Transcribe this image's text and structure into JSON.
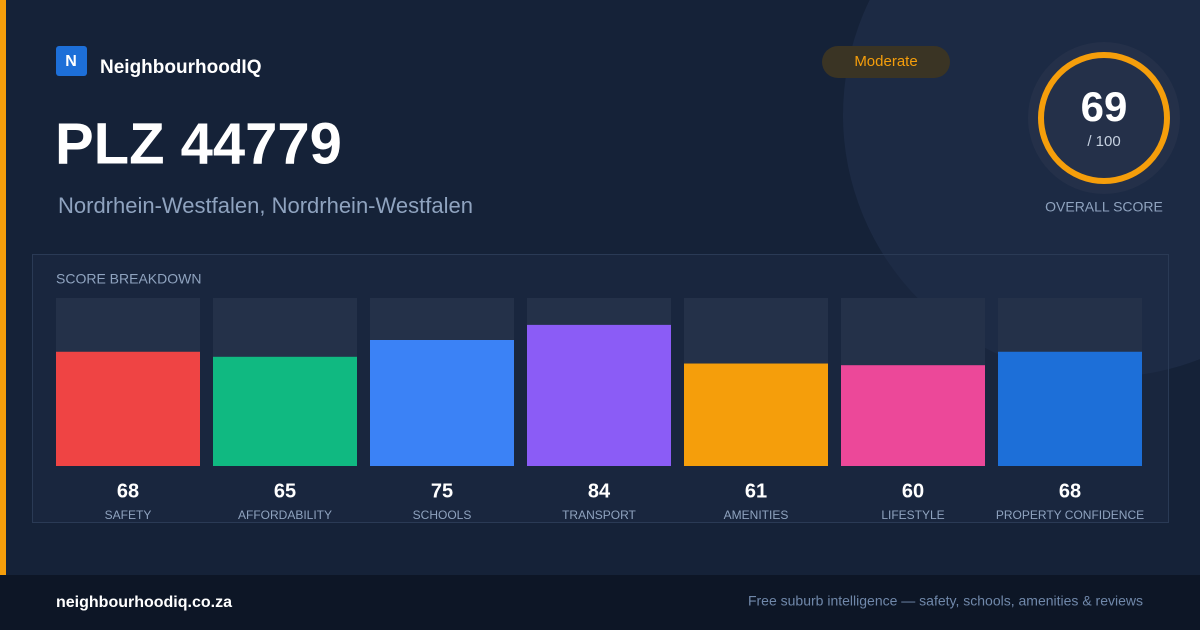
{
  "brand": {
    "logo": "N",
    "name": "NeighbourhoodIQ"
  },
  "title": "PLZ 44779",
  "subtitle": "Nordrhein-Westfalen, Nordrhein-Westfalen",
  "badge": "Moderate",
  "overall": {
    "score": 69,
    "max": {
      "value": 100,
      "label": "/ 100"
    },
    "caption": "OVERALL SCORE"
  },
  "chart_data": {
    "type": "bar",
    "title": "SCORE BREAKDOWN",
    "categories": [
      "SAFETY",
      "AFFORDABILITY",
      "SCHOOLS",
      "TRANSPORT",
      "AMENITIES",
      "LIFESTYLE",
      "PROPERTY CONFIDENCE"
    ],
    "values": [
      68,
      65,
      75,
      84,
      61,
      60,
      68
    ],
    "colors": [
      "#ef4444",
      "#10b981",
      "#3b82f6",
      "#8b5cf6",
      "#f59e0b",
      "#ec4899",
      "#1d6fd8"
    ],
    "ylim": [
      0,
      100
    ]
  },
  "footer": {
    "site": "neighbourhoodiq.co.za",
    "tagline": "Free suburb intelligence — safety, schools, amenities & reviews"
  }
}
